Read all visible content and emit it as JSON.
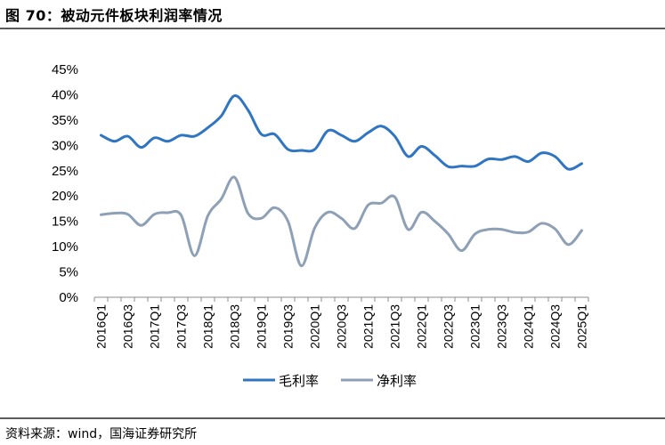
{
  "header": {
    "title": "图 70：被动元件板块利润率情况"
  },
  "footer": {
    "source": "资料来源：wind，国海证券研究所"
  },
  "chart_data": {
    "type": "line",
    "title": "被动元件板块利润率情况",
    "xlabel": "",
    "ylabel": "",
    "ylim": [
      0,
      45
    ],
    "yticks": [
      "0%",
      "5%",
      "10%",
      "15%",
      "20%",
      "25%",
      "30%",
      "35%",
      "40%",
      "45%"
    ],
    "yticks_values": [
      0,
      5,
      10,
      15,
      20,
      25,
      30,
      35,
      40,
      45
    ],
    "xticks": [
      "2016Q1",
      "2016Q3",
      "2017Q1",
      "2017Q3",
      "2018Q1",
      "2018Q3",
      "2019Q1",
      "2019Q3",
      "2020Q1",
      "2020Q3",
      "2021Q1",
      "2021Q3",
      "2022Q1",
      "2022Q3",
      "2023Q1",
      "2023Q3",
      "2024Q1",
      "2024Q3",
      "2025Q1"
    ],
    "categories": [
      "2016Q1",
      "2016Q2",
      "2016Q3",
      "2016Q4",
      "2017Q1",
      "2017Q2",
      "2017Q3",
      "2017Q4",
      "2018Q1",
      "2018Q2",
      "2018Q3",
      "2018Q4",
      "2019Q1",
      "2019Q2",
      "2019Q3",
      "2019Q4",
      "2020Q1",
      "2020Q2",
      "2020Q3",
      "2020Q4",
      "2021Q1",
      "2021Q2",
      "2021Q3",
      "2021Q4",
      "2022Q1",
      "2022Q2",
      "2022Q3",
      "2022Q4",
      "2023Q1",
      "2023Q2",
      "2023Q3",
      "2023Q4",
      "2024Q1",
      "2024Q2",
      "2024Q3",
      "2024Q4",
      "2025Q1"
    ],
    "legend_position": "bottom",
    "series": [
      {
        "name": "毛利率",
        "color": "#2f75c2",
        "values": [
          32.0,
          30.8,
          31.8,
          29.6,
          31.5,
          30.8,
          32.0,
          31.8,
          33.5,
          35.8,
          39.8,
          37.0,
          32.2,
          32.2,
          29.2,
          29.0,
          29.2,
          32.9,
          32.0,
          30.8,
          32.5,
          33.8,
          31.8,
          27.8,
          29.8,
          28.0,
          25.8,
          25.9,
          25.9,
          27.3,
          27.2,
          27.8,
          26.8,
          28.5,
          27.8,
          25.3,
          26.4
        ]
      },
      {
        "name": "净利率",
        "color": "#8ea0b6",
        "values": [
          16.3,
          16.6,
          16.4,
          14.2,
          16.4,
          16.7,
          16.2,
          8.2,
          16.1,
          19.4,
          23.7,
          16.6,
          15.6,
          17.7,
          15.0,
          6.2,
          13.7,
          16.8,
          15.6,
          13.6,
          18.2,
          18.6,
          19.8,
          13.4,
          16.8,
          15.0,
          12.5,
          9.2,
          12.5,
          13.4,
          13.4,
          12.8,
          12.9,
          14.6,
          13.5,
          10.4,
          13.2
        ]
      }
    ]
  }
}
